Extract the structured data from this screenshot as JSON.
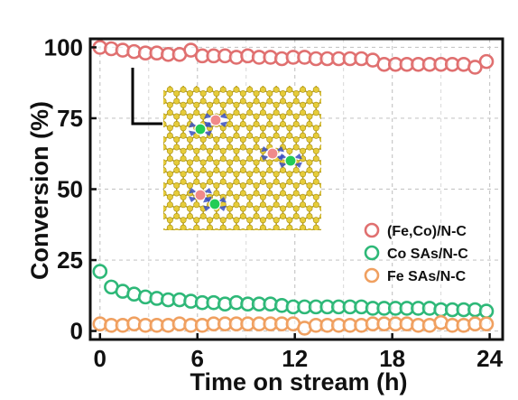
{
  "chart_data": {
    "type": "scatter",
    "title": "",
    "xlabel": "Time on stream (h)",
    "ylabel": "Conversion (%)",
    "xlim": [
      -0.6,
      24.8
    ],
    "ylim": [
      -3,
      103
    ],
    "xticks": [
      0,
      6,
      12,
      18,
      24
    ],
    "yticks": [
      0,
      25,
      50,
      75,
      100
    ],
    "grid": "dashed",
    "legend_position": "bottom-right",
    "inset": "atomic structure model (yellow carbon lattice with blue N, red and green metal atoms)",
    "series": [
      {
        "name": "(Fe,Co)/N-C",
        "color": "#e07070",
        "x": [
          0,
          0.7,
          1.4,
          2.1,
          2.8,
          3.5,
          4.2,
          4.9,
          5.6,
          6.3,
          7.0,
          7.7,
          8.4,
          9.1,
          9.8,
          10.5,
          11.2,
          11.9,
          12.6,
          13.3,
          14.0,
          14.7,
          15.4,
          16.1,
          16.8,
          17.5,
          18.2,
          18.9,
          19.6,
          20.3,
          21.0,
          21.7,
          22.4,
          23.1,
          23.8
        ],
        "y": [
          100,
          99.5,
          99,
          98.5,
          98,
          98,
          97.5,
          97.5,
          99,
          97,
          97,
          97,
          96.5,
          97,
          96.5,
          96.5,
          96,
          96.5,
          96.5,
          96,
          96,
          96,
          96,
          96,
          95.5,
          94,
          94,
          94,
          94,
          94,
          94,
          94,
          94,
          93,
          95
        ]
      },
      {
        "name": "Co SAs/N-C",
        "color": "#2eb878",
        "x": [
          0,
          0.7,
          1.4,
          2.1,
          2.8,
          3.5,
          4.2,
          4.9,
          5.6,
          6.3,
          7.0,
          7.7,
          8.4,
          9.1,
          9.8,
          10.5,
          11.2,
          11.9,
          12.6,
          13.3,
          14.0,
          14.7,
          15.4,
          16.1,
          16.8,
          17.5,
          18.2,
          18.9,
          19.6,
          20.3,
          21.0,
          21.7,
          22.4,
          23.1,
          23.8
        ],
        "y": [
          21,
          15.5,
          14,
          13,
          12,
          11.5,
          11,
          11,
          10.5,
          10,
          10,
          9.5,
          10,
          9.5,
          9.5,
          9.5,
          9,
          8.5,
          8.5,
          8.5,
          8.5,
          8.5,
          8.5,
          8.5,
          8,
          8,
          8,
          8,
          8,
          8,
          7.5,
          7.5,
          7.5,
          7.5,
          7
        ]
      },
      {
        "name": "Fe SAs/N-C",
        "color": "#f0a060",
        "x": [
          0,
          0.7,
          1.4,
          2.1,
          2.8,
          3.5,
          4.2,
          4.9,
          5.6,
          6.3,
          7.0,
          7.7,
          8.4,
          9.1,
          9.8,
          10.5,
          11.2,
          11.9,
          12.6,
          13.3,
          14.0,
          14.7,
          15.4,
          16.1,
          16.8,
          17.5,
          18.2,
          18.9,
          19.6,
          20.3,
          21.0,
          21.7,
          22.4,
          23.1,
          23.8
        ],
        "y": [
          2.5,
          2,
          2,
          2.5,
          2,
          2,
          2,
          2.5,
          2,
          2,
          2.5,
          2.5,
          2.5,
          2.5,
          2.5,
          2.5,
          2.5,
          2.5,
          1,
          2,
          2,
          2,
          2,
          2,
          2.5,
          2.5,
          2.5,
          2.5,
          2,
          2,
          3,
          2,
          2,
          2.5,
          2.5
        ]
      }
    ]
  }
}
